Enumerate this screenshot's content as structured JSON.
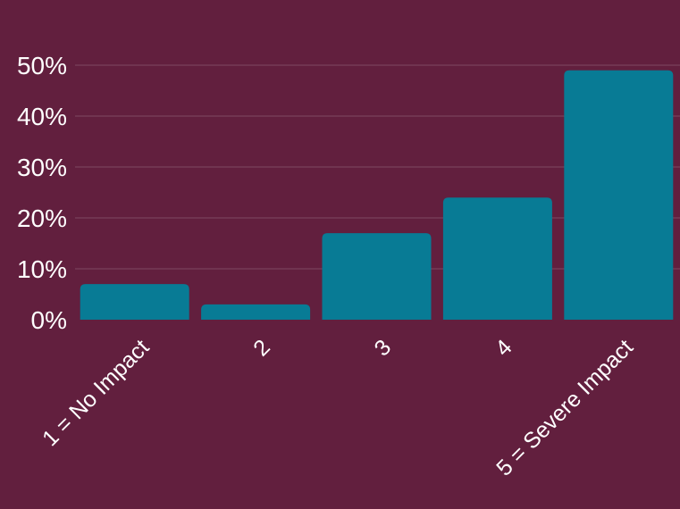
{
  "chart_data": {
    "type": "bar",
    "categories": [
      "1 = No Impact",
      "2",
      "3",
      "4",
      "5 = Severe Impact"
    ],
    "values": [
      7,
      3,
      17,
      24,
      49
    ],
    "y_ticks": [
      "0%",
      "10%",
      "20%",
      "30%",
      "40%",
      "50%"
    ],
    "ylim": [
      0,
      50
    ],
    "grid": true,
    "colors": {
      "background": "#621f3e",
      "bar": "#087b95",
      "gridline": "#7d4a63",
      "text": "#ffffff"
    }
  }
}
